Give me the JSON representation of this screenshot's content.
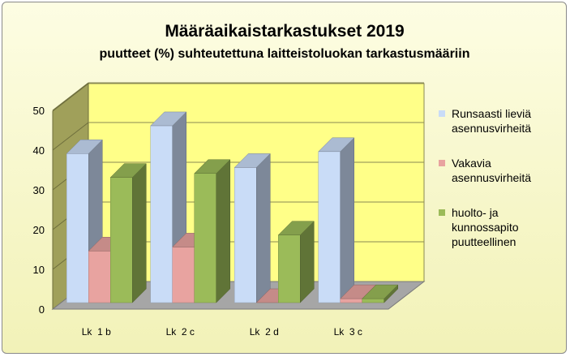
{
  "chart_data": {
    "type": "bar",
    "title": "Määräaikaistarkastukset 2019",
    "subtitle": "puutteet (%) suhteutettuna laitteistoluokan tarkastusmääriin",
    "categories": [
      "Lk  1 b",
      "Lk  2 c",
      "Lk  2 d",
      "Lk  3 c"
    ],
    "series": [
      {
        "name": "Runsaasti lieviä asennusvirheitä",
        "values": [
          37.5,
          44.5,
          34,
          38
        ],
        "color": "#c9dcf7"
      },
      {
        "name": "Vakavia asennusvirheitä",
        "values": [
          13,
          14,
          0,
          1
        ],
        "color": "#e8a3a0"
      },
      {
        "name": "huolto- ja kunnossapito puutteellinen",
        "values": [
          31.5,
          32.5,
          17,
          1
        ],
        "color": "#9bbb59"
      }
    ],
    "yticks": [
      "0",
      "10",
      "20",
      "30",
      "40",
      "50"
    ],
    "ylim": [
      0,
      50
    ],
    "grid": true,
    "legend_position": "right",
    "legend_lines": [
      [
        "Runsaasti lieviä",
        "asennusvirheitä"
      ],
      [
        "Vakavia",
        "asennusvirheitä"
      ],
      [
        "huolto- ja",
        "kunnossapito",
        "puutteellinen"
      ]
    ],
    "wall_color": "#ffff88",
    "side_wall_color": "#a0a05a",
    "floor_color": "#a6a6a6"
  }
}
